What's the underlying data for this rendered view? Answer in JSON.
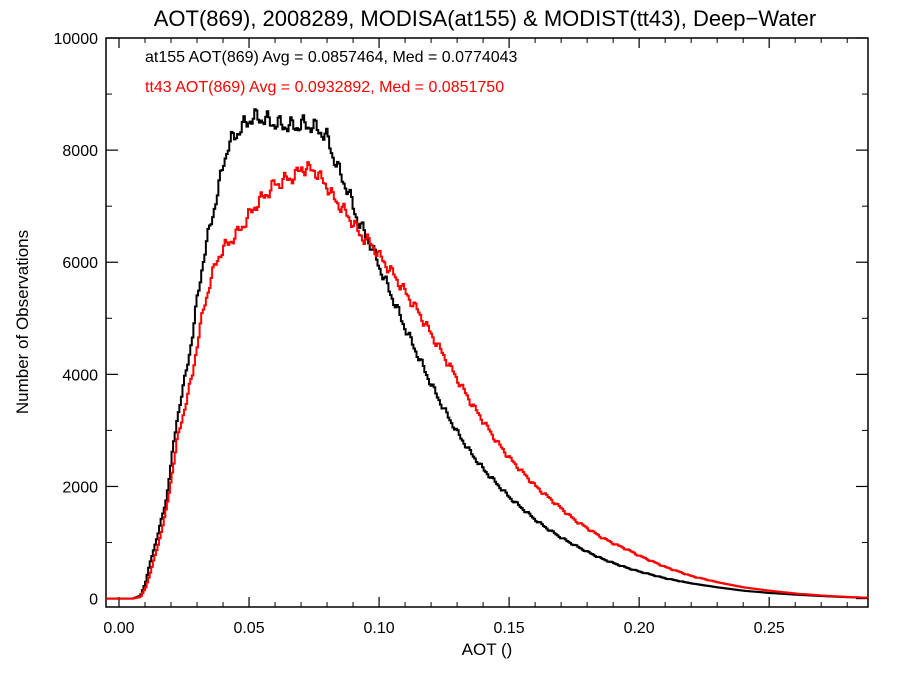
{
  "chart_data": {
    "type": "line",
    "title": "AOT(869), 2008289, MODISA(at155) & MODIST(tt43), Deep−Water",
    "xlabel": "AOT ()",
    "ylabel": "Number of Observations",
    "xlim": [
      -0.005,
      0.288
    ],
    "ylim": [
      -150,
      10000
    ],
    "xticks": [
      0.0,
      0.05,
      0.1,
      0.15,
      0.2,
      0.25
    ],
    "xtick_labels": [
      "0.00",
      "0.05",
      "0.10",
      "0.15",
      "0.20",
      "0.25"
    ],
    "yticks": [
      0,
      2000,
      4000,
      6000,
      8000,
      10000
    ],
    "ytick_labels": [
      "0",
      "2000",
      "4000",
      "6000",
      "8000",
      "10000"
    ],
    "grid": false,
    "step": true,
    "series": [
      {
        "color": "#000000",
        "x": [
          -0.005,
          0.005,
          0.008,
          0.01,
          0.012,
          0.015,
          0.018,
          0.02,
          0.022,
          0.025,
          0.028,
          0.03,
          0.032,
          0.035,
          0.038,
          0.04,
          0.042,
          0.045,
          0.048,
          0.05,
          0.052,
          0.055,
          0.057,
          0.06,
          0.062,
          0.065,
          0.068,
          0.07,
          0.072,
          0.075,
          0.077,
          0.08,
          0.082,
          0.085,
          0.088,
          0.09,
          0.092,
          0.095,
          0.098,
          0.1,
          0.105,
          0.11,
          0.115,
          0.12,
          0.125,
          0.13,
          0.135,
          0.14,
          0.145,
          0.15,
          0.155,
          0.16,
          0.165,
          0.17,
          0.175,
          0.18,
          0.185,
          0.19,
          0.195,
          0.2,
          0.21,
          0.22,
          0.23,
          0.24,
          0.25,
          0.26,
          0.27,
          0.28,
          0.288
        ],
        "values": [
          0,
          0,
          50,
          300,
          700,
          1200,
          1800,
          2500,
          3200,
          3900,
          4700,
          5400,
          6000,
          6700,
          7300,
          7800,
          8100,
          8300,
          8450,
          8550,
          8580,
          8560,
          8520,
          8470,
          8450,
          8430,
          8420,
          8460,
          8450,
          8400,
          8350,
          8200,
          7900,
          7550,
          7250,
          6950,
          6700,
          6450,
          6150,
          5900,
          5350,
          4800,
          4300,
          3800,
          3350,
          2950,
          2600,
          2300,
          2050,
          1800,
          1600,
          1400,
          1230,
          1080,
          950,
          830,
          720,
          630,
          550,
          480,
          360,
          270,
          200,
          140,
          100,
          70,
          45,
          25,
          15
        ]
      },
      {
        "color": "#ff0000",
        "x": [
          -0.005,
          0.005,
          0.008,
          0.01,
          0.012,
          0.015,
          0.018,
          0.02,
          0.022,
          0.025,
          0.028,
          0.03,
          0.032,
          0.035,
          0.038,
          0.04,
          0.042,
          0.045,
          0.048,
          0.05,
          0.052,
          0.055,
          0.058,
          0.06,
          0.062,
          0.065,
          0.068,
          0.07,
          0.072,
          0.075,
          0.077,
          0.08,
          0.082,
          0.085,
          0.088,
          0.09,
          0.092,
          0.095,
          0.098,
          0.1,
          0.105,
          0.11,
          0.115,
          0.12,
          0.125,
          0.13,
          0.135,
          0.14,
          0.145,
          0.15,
          0.155,
          0.16,
          0.165,
          0.17,
          0.175,
          0.18,
          0.185,
          0.19,
          0.195,
          0.2,
          0.21,
          0.22,
          0.23,
          0.24,
          0.25,
          0.26,
          0.27,
          0.28,
          0.288
        ],
        "values": [
          0,
          0,
          30,
          200,
          500,
          1000,
          1600,
          2200,
          2800,
          3400,
          4000,
          4600,
          5100,
          5700,
          6100,
          6250,
          6350,
          6500,
          6700,
          6850,
          7000,
          7150,
          7300,
          7400,
          7420,
          7500,
          7550,
          7700,
          7650,
          7650,
          7500,
          7350,
          7150,
          7000,
          6800,
          6700,
          6500,
          6400,
          6250,
          6100,
          5800,
          5450,
          5100,
          4700,
          4300,
          3900,
          3500,
          3150,
          2800,
          2500,
          2250,
          2000,
          1800,
          1600,
          1400,
          1250,
          1100,
          980,
          880,
          760,
          560,
          400,
          290,
          200,
          140,
          90,
          55,
          30,
          15
        ]
      }
    ],
    "annotations": [
      {
        "text": "at155 AOT(869) Avg = 0.0857464, Med = 0.0774043",
        "color": "#000000"
      },
      {
        "text": "tt43 AOT(869) Avg = 0.0932892, Med = 0.0851750",
        "color": "#ff0000"
      }
    ]
  }
}
